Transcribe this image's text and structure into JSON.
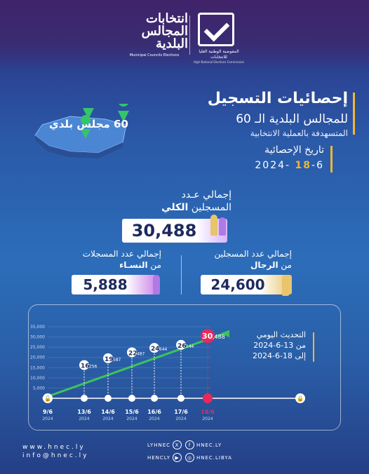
{
  "header": {
    "org_name_ar": "المفوضية الوطنية العليا للانتخابات",
    "org_name_en": "High National Elections Commission",
    "elections_ar": "انتخابات المجالس البلدية",
    "elections_en": "Municipal Councils Elections"
  },
  "map_label": "60 مجلس بلدي",
  "title": "إحصائيات التسجيل",
  "subtitle1": "للمجالس البلدية الـ 60",
  "subtitle2": "المتسهدفة بالعملية الانتخابية",
  "stats_date_label": "تاريخ الإحصائية",
  "stats_date_prefix": "18",
  "stats_date_rest": "-6 -2024",
  "total": {
    "label1": "إجمالي عـدد",
    "label2_pre": "المسجلين ",
    "label2_bold": "الكلي",
    "value": "30,488"
  },
  "men": {
    "label1": "إجمالي عدد المسجلين",
    "label2_pre": "من ",
    "label2_bold": "الرجال",
    "value": "24,600"
  },
  "women": {
    "label1": "إجمالي عدد المسجلات",
    "label2_pre": "من ",
    "label2_bold": "النسـاء",
    "value": "5,888"
  },
  "daily_update": {
    "title": "التحديث اليومي",
    "from": "من 13-6-2024",
    "to": "إلى 18-6-2024"
  },
  "chart_data": {
    "type": "line",
    "y_ticks": [
      "35,000",
      "30,000",
      "25,000",
      "20,000",
      "15,000",
      "10,000",
      "5,000",
      "0"
    ],
    "ylim": [
      0,
      35000
    ],
    "points": [
      {
        "day": "9",
        "month": "6",
        "year": "2024",
        "value": 0,
        "label_big": "",
        "label_small": ""
      },
      {
        "day": "13",
        "month": "6",
        "year": "2024",
        "value": 16256,
        "label_big": "16",
        "label_small": ",256"
      },
      {
        "day": "14",
        "month": "6",
        "year": "2024",
        "value": 19587,
        "label_big": "19",
        "label_small": ",587"
      },
      {
        "day": "15",
        "month": "6",
        "year": "2024",
        "value": 22487,
        "label_big": "22",
        "label_small": ",487"
      },
      {
        "day": "16",
        "month": "6",
        "year": "2024",
        "value": 24644,
        "label_big": "24",
        "label_small": ",644"
      },
      {
        "day": "17",
        "month": "6",
        "year": "2024",
        "value": 26144,
        "label_big": "26",
        "label_small": ",144"
      },
      {
        "day": "18",
        "month": "6",
        "year": "2024",
        "value": 30488,
        "label_big": "30",
        "label_small": ",488"
      }
    ],
    "colors": {
      "line": "#3cc45a",
      "highlight": "#e8285a"
    }
  },
  "footer": {
    "website": "www.hnec.ly",
    "email": "info@hnec.ly",
    "social": [
      "LYHNEC",
      "HNEC.LY",
      "HENCLY",
      "HNEC.LIBYA"
    ]
  }
}
